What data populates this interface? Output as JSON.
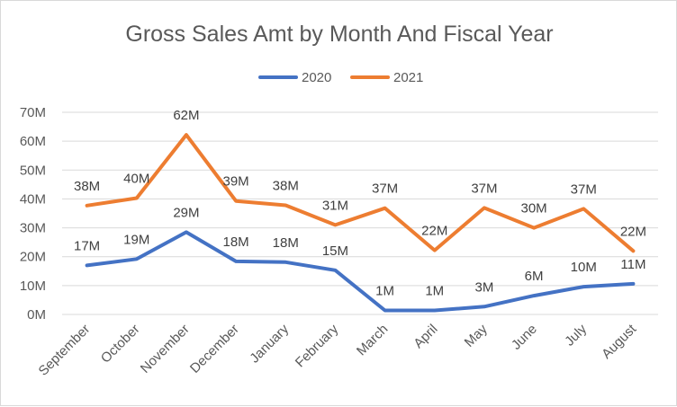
{
  "chart_data": {
    "type": "line",
    "title": "Gross Sales Amt by Month And Fiscal Year",
    "categories": [
      "September",
      "October",
      "November",
      "December",
      "January",
      "February",
      "March",
      "April",
      "May",
      "June",
      "July",
      "August"
    ],
    "y_ticks": [
      "0M",
      "10M",
      "20M",
      "30M",
      "40M",
      "50M",
      "60M",
      "70M"
    ],
    "ylim": [
      0,
      70
    ],
    "legend_position": "top",
    "series": [
      {
        "name": "2020",
        "color": "#4472C4",
        "values": [
          17,
          19.2,
          28.5,
          18.4,
          18.1,
          15.3,
          1.4,
          1.4,
          2.7,
          6.5,
          9.6,
          10.6
        ],
        "labels": [
          "17M",
          "19M",
          "29M",
          "18M",
          "18M",
          "15M",
          "1M",
          "1M",
          "3M",
          "6M",
          "10M",
          "11M"
        ]
      },
      {
        "name": "2021",
        "color": "#ED7D31",
        "values": [
          37.7,
          40.3,
          62.2,
          39.3,
          37.8,
          31,
          36.8,
          22.2,
          36.9,
          30,
          36.6,
          22
        ],
        "labels": [
          "38M",
          "40M",
          "62M",
          "39M",
          "38M",
          "31M",
          "37M",
          "22M",
          "37M",
          "30M",
          "37M",
          "22M"
        ]
      }
    ]
  }
}
